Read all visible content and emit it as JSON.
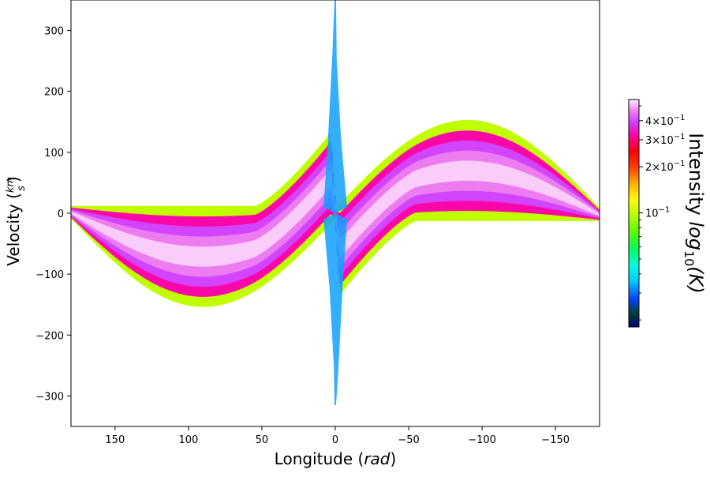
{
  "chart_data": {
    "type": "heatmap",
    "title": "",
    "xlabel": "Longitude",
    "xlabel_unit": "rad",
    "ylabel": "Velocity",
    "ylabel_unit_num": "km",
    "ylabel_unit_den": "s",
    "xlim": [
      180,
      -180
    ],
    "ylim": [
      -350,
      350
    ],
    "x_ticks": [
      150,
      100,
      50,
      0,
      -50,
      -100,
      -150
    ],
    "y_ticks": [
      300,
      200,
      100,
      0,
      -100,
      -200,
      -300
    ],
    "x_tick_labels": [
      "150",
      "100",
      "50",
      "0",
      "−50",
      "−100",
      "−150"
    ],
    "y_tick_labels": [
      "300",
      "200",
      "100",
      "0",
      "−100",
      "−200",
      "−300"
    ],
    "grid": false,
    "colorbar": {
      "label": "Intensity",
      "label_math_base": "log",
      "label_math_sub": "10",
      "label_math_arg": "(K)",
      "scale": "log",
      "range": [
        0.018,
        0.55
      ],
      "colormap": "gist_ncar",
      "tick_values": [
        0.4,
        0.3,
        0.2,
        0.1
      ],
      "tick_mantissas": [
        "4",
        "3",
        "2",
        ""
      ],
      "tick_exponents": [
        "−1",
        "−1",
        "−1",
        "−1"
      ]
    },
    "emission_region": {
      "description_points_upper_envelope": [
        [
          180,
          12
        ],
        [
          150,
          10
        ],
        [
          120,
          10
        ],
        [
          90,
          14
        ],
        [
          60,
          40
        ],
        [
          40,
          90
        ],
        [
          30,
          130
        ],
        [
          20,
          160
        ],
        [
          10,
          230
        ],
        [
          2,
          300
        ],
        [
          0,
          350
        ]
      ],
      "description_points_lower_envelope": [
        [
          180,
          -12
        ],
        [
          150,
          -60
        ],
        [
          120,
          -120
        ],
        [
          90,
          -143
        ],
        [
          60,
          -110
        ],
        [
          40,
          -55
        ],
        [
          20,
          -25
        ],
        [
          0,
          -5
        ]
      ],
      "symmetric_about_origin": true
    }
  }
}
